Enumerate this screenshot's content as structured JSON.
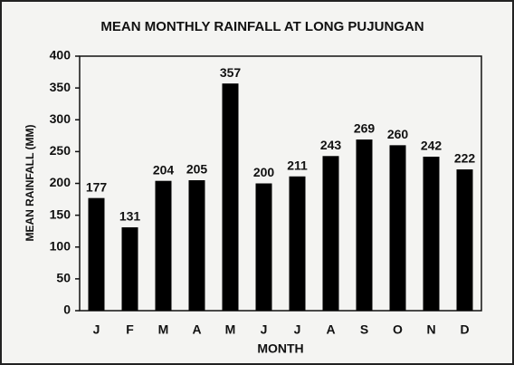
{
  "chart_data": {
    "type": "bar",
    "title": "MEAN MONTHLY RAINFALL AT LONG PUJUNGAN",
    "x_label": "MONTH",
    "y_label": "MEAN RAINFALL (MM)",
    "categories": [
      "J",
      "F",
      "M",
      "A",
      "M",
      "J",
      "J",
      "A",
      "S",
      "O",
      "N",
      "D"
    ],
    "values": [
      177,
      131,
      204,
      205,
      357,
      200,
      211,
      243,
      269,
      260,
      242,
      222
    ],
    "color": "#000000",
    "ylim": [
      0,
      400
    ],
    "yticks": [
      0,
      50,
      100,
      150,
      200,
      250,
      300,
      350,
      400
    ],
    "grid": false
  }
}
